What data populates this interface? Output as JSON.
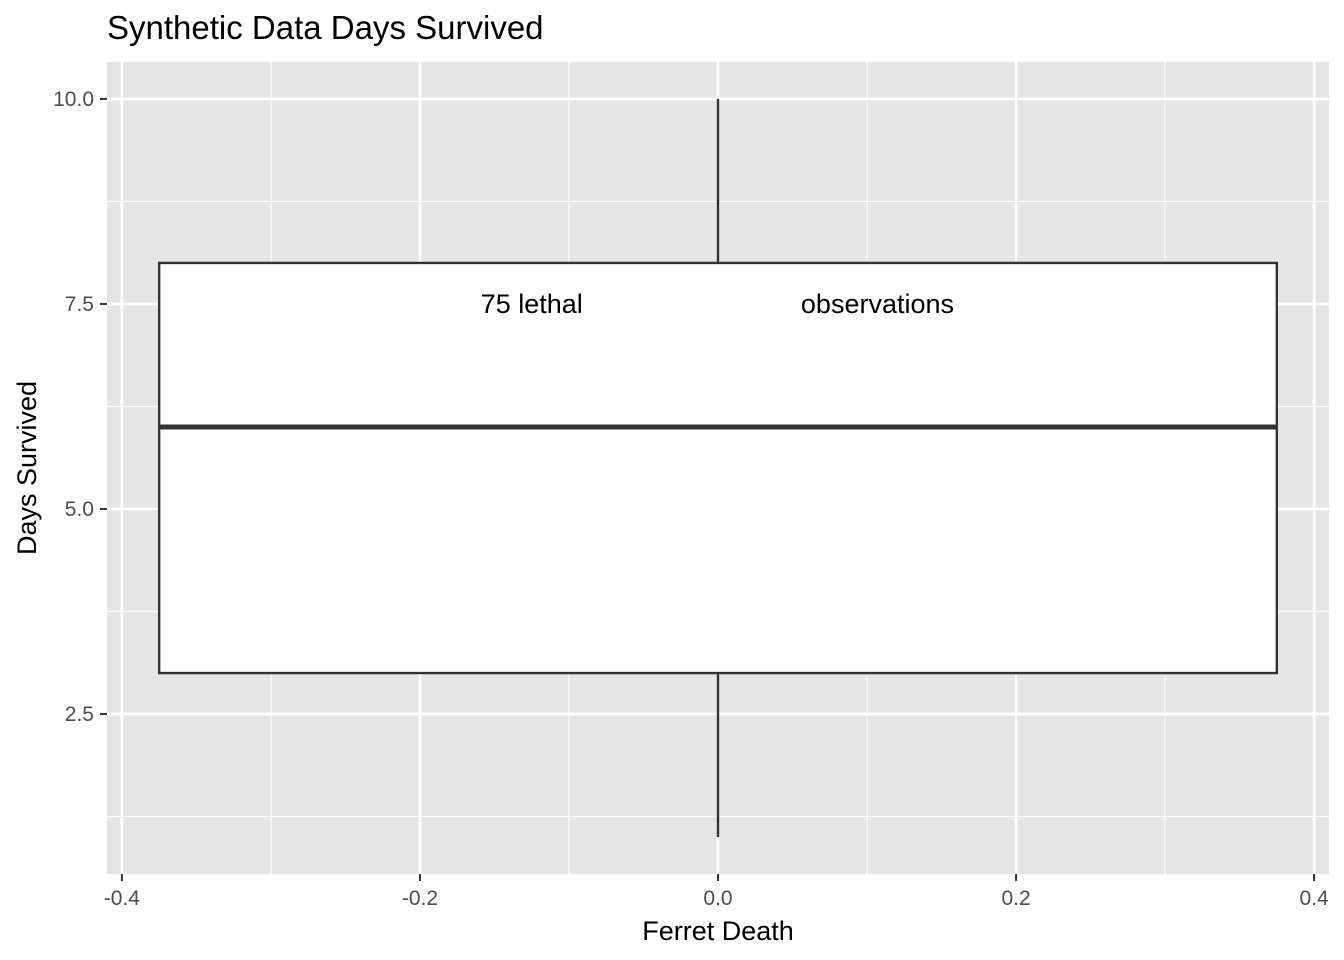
{
  "chart_data": {
    "type": "boxplot",
    "title": "Synthetic Data Days Survived",
    "xlabel": "Ferret Death",
    "ylabel": "Days Survived",
    "xlim": [
      -0.41,
      0.41
    ],
    "ylim": [
      0.55,
      10.45
    ],
    "x_ticks": [
      -0.4,
      -0.2,
      0.0,
      0.2,
      0.4
    ],
    "x_tick_labels": [
      "-0.4",
      "-0.2",
      "0.0",
      "0.2",
      "0.4"
    ],
    "y_ticks": [
      2.5,
      5.0,
      7.5,
      10.0
    ],
    "y_tick_labels": [
      "2.5",
      "5.0",
      "7.5",
      "10.0"
    ],
    "grid": true,
    "colors": {
      "panel_background": "#e5e5e5",
      "grid": "#ffffff",
      "box_fill": "#ffffff",
      "box_line": "#333333"
    },
    "box": {
      "x_center": 0.0,
      "x_min": -0.375,
      "x_max": 0.375,
      "whisker_low": 1.0,
      "q1": 3.0,
      "median": 6.0,
      "q3": 8.0,
      "whisker_high": 10.0
    },
    "annotations": [
      {
        "text": "75 lethal",
        "x": -0.125,
        "y": 7.5
      },
      {
        "text": "observations",
        "x": 0.107,
        "y": 7.5
      }
    ]
  }
}
